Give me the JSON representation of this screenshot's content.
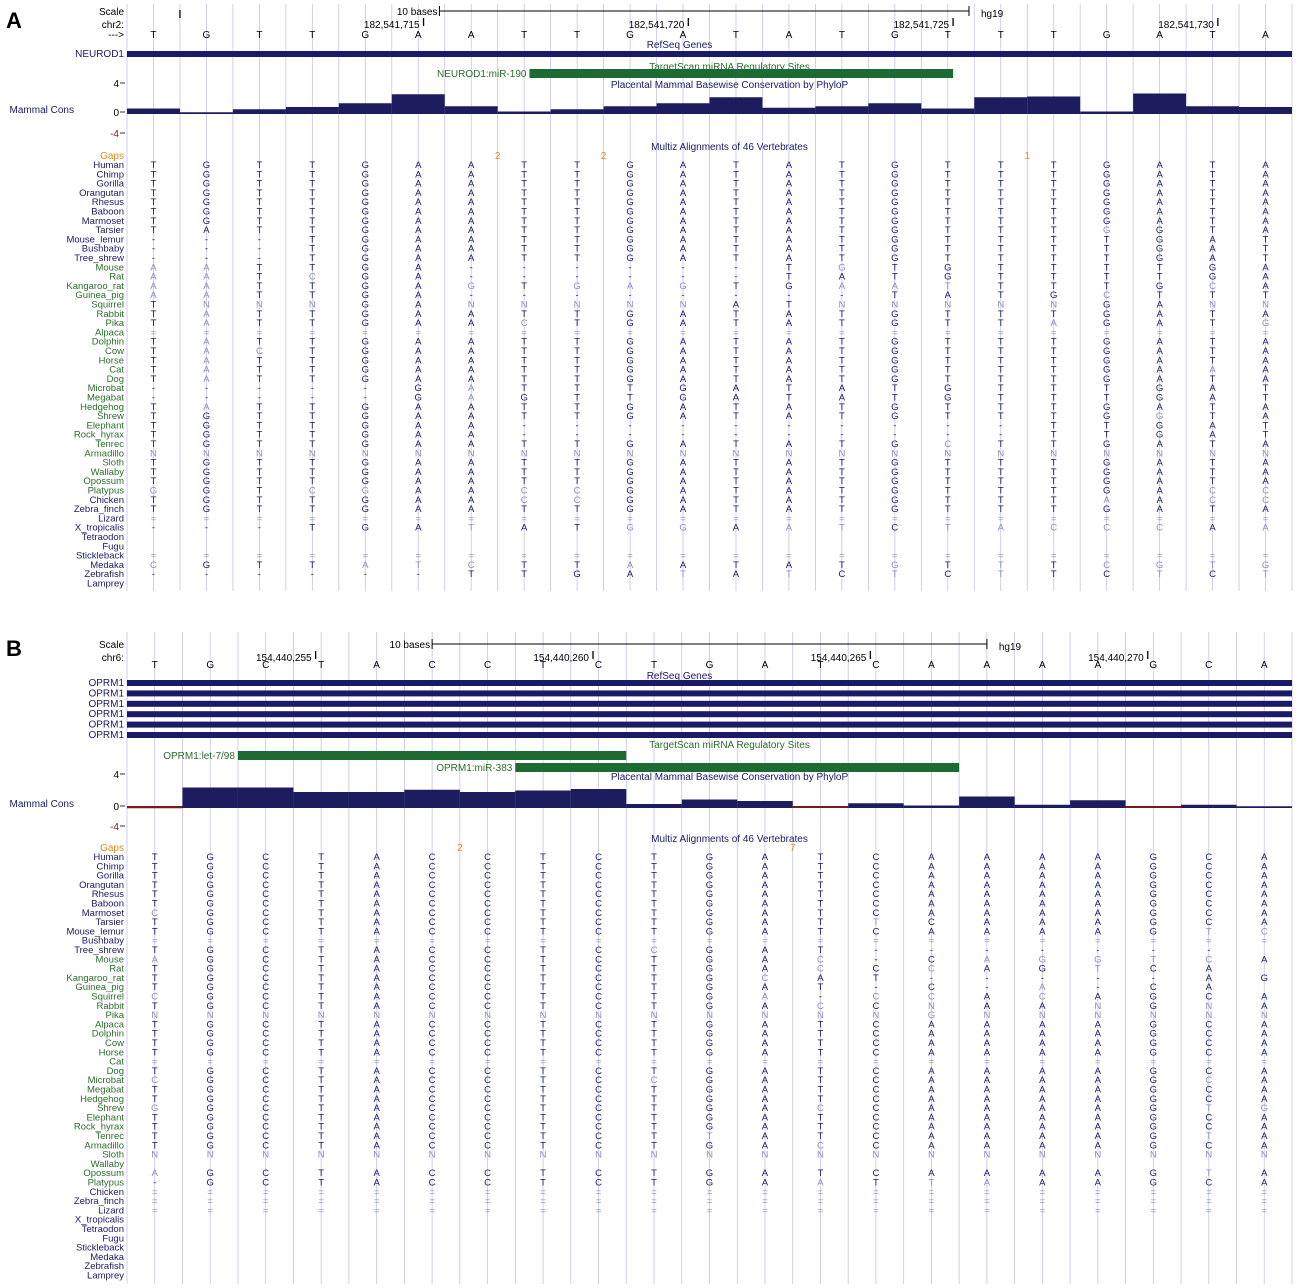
{
  "colors": {
    "navy": "#1a1a66",
    "navy_bar": "#1c1c5e",
    "green_text": "#2a6e2a",
    "green_bar": "#1d6b33",
    "gaps": "#e08a1a",
    "grid": "#c4c4e6",
    "faint": "#8c8cc6",
    "neg_bar": "#7a1a1a",
    "black": "#000000"
  },
  "panels": [
    {
      "id": "A",
      "label": "A",
      "scale_label": "Scale",
      "chrom_label": "chr2:",
      "strand_label": "--->",
      "scale_text": "10 bases",
      "assembly": "hg19",
      "positions": [
        "182,541,715",
        "182,541,720",
        "182,541,725",
        "182,541,730"
      ],
      "ref_seq": "TGTTGAATTGATATGTTTGATA",
      "refseq_title": "RefSeq Genes",
      "genes": [
        "NEUROD1"
      ],
      "targetscan_title": "TargetScan miRNA Regulatory Sites",
      "mirna_sites": [
        {
          "label": "NEUROD1:miR-190",
          "from": 7.6,
          "to": 15.6
        }
      ],
      "phylop_title": "Placental Mammal Basewise Conservation by PhyloP",
      "cons_label": "Mammal Cons",
      "axis_ticks": [
        "4",
        "0",
        "-4"
      ],
      "cons_values": [
        0.6,
        0.1,
        0.5,
        0.8,
        1.3,
        2.5,
        0.9,
        0.2,
        0.5,
        0.9,
        1.3,
        2.1,
        0.7,
        0.9,
        1.3,
        0.6,
        2.1,
        2.2,
        0.2,
        2.6,
        0.9,
        0.8
      ],
      "multiz_title": "Multiz Alignments of 46 Vertebrates",
      "gaps_label": "Gaps",
      "gaps": [
        {
          "label": "2",
          "after": 6
        },
        {
          "label": "2",
          "after": 8
        },
        {
          "label": "1",
          "after": 16
        }
      ],
      "species": [
        {
          "name": "Human",
          "group": "primate",
          "seq": "TGTTGAATTGATATGTTTGATA",
          "faint": ""
        },
        {
          "name": "Chimp",
          "group": "primate",
          "seq": "TGTTGAATTGATATGTTTGATA",
          "faint": ""
        },
        {
          "name": "Gorilla",
          "group": "primate",
          "seq": "TGTTGAATTGATATGTTTGATA",
          "faint": ""
        },
        {
          "name": "Orangutan",
          "group": "primate",
          "seq": "TGTTGAATTGATATGTTTGATA",
          "faint": ""
        },
        {
          "name": "Rhesus",
          "group": "primate",
          "seq": "TGTTGAATTGATATGTTTGATA",
          "faint": ""
        },
        {
          "name": "Baboon",
          "group": "primate",
          "seq": "TGTTGAATTGATATGTTTGATA",
          "faint": ""
        },
        {
          "name": "Marmoset",
          "group": "primate",
          "seq": "TGTTGAATTGATATGTTTGATA",
          "faint": ""
        },
        {
          "name": "Tarsier",
          "group": "primate",
          "seq": "TATTGAATTGATATGTTTGGTA",
          "faint": "..................*..."
        },
        {
          "name": "Mouse_lemur",
          "group": "primate",
          "seq": "---TGAATTGATATGTTTTGATA",
          "faint": ""
        },
        {
          "name": "Bushbaby",
          "group": "primate",
          "seq": "---TGAATTGATATGTTTTGATA",
          "faint": ""
        },
        {
          "name": "Tree_shrew",
          "group": "primate",
          "seq": "---TGAATTGATATGTTTTGATA",
          "faint": ""
        },
        {
          "name": "Mouse",
          "group": "mammal",
          "seq": "AATTGA------TGTGTTTTGATA",
          "faint": "**...........*........"
        },
        {
          "name": "Rat",
          "group": "mammal",
          "seq": "AATCGA------TATGTTTTGATA",
          "faint": "**.*.................."
        },
        {
          "name": "Kangaroo_rat",
          "group": "mammal",
          "seq": "AATTGAGTGAGTGAATTTTGCA",
          "faint": "**....*.***..***....*."
        },
        {
          "name": "Guinea_pig",
          "group": "mammal",
          "seq": "AATTGA--------TATGCTTTGATA",
          "faint": "**................*...."
        },
        {
          "name": "Squirrel",
          "group": "mammal",
          "seq": "TNNNGANNNNNATNNNNNGANN",
          "faint": ".***..*****..*****..**"
        },
        {
          "name": "Rabbit",
          "group": "mammal",
          "seq": "TATTGAATTGATATGTTTGATA",
          "faint": ".*...................."
        },
        {
          "name": "Pika",
          "group": "mammal",
          "seq": "TATTGAACTGATATGTTAGATG",
          "faint": ".*.....*.........*...*"
        },
        {
          "name": "Alpaca",
          "group": "mammal",
          "seq": "======================",
          "faint": "**********************"
        },
        {
          "name": "Dolphin",
          "group": "mammal",
          "seq": "TATTGAATTGATATGTTTGATA",
          "faint": ".*...................."
        },
        {
          "name": "Cow",
          "group": "mammal",
          "seq": "TACTGAATTGATATGTTTGATA",
          "faint": ".**..................."
        },
        {
          "name": "Horse",
          "group": "mammal",
          "seq": "TATTGAATTGATATGTTTGATA",
          "faint": ".*...................."
        },
        {
          "name": "Cat",
          "group": "mammal",
          "seq": "TATTGAATTGATATGTTTGAAA",
          "faint": ".*..................*."
        },
        {
          "name": "Dog",
          "group": "mammal",
          "seq": "TATTGAATTGATATGTTTGATA",
          "faint": ".*...................."
        },
        {
          "name": "Microbat",
          "group": "mammal",
          "seq": "-----GATTTGATATGTTTGATA",
          "faint": "......*..............."
        },
        {
          "name": "Megabat",
          "group": "mammal",
          "seq": "-----GAGTTGATATGTTTGATA",
          "faint": "......*..............."
        },
        {
          "name": "Hedgehog",
          "group": "mammal",
          "seq": "TATTGAATTGATATGTTTGATA",
          "faint": ".*...................."
        },
        {
          "name": "Shrew",
          "group": "mammal",
          "seq": "TGTTGAATTGATATGTTTGGTA",
          "faint": "...................*.."
        },
        {
          "name": "Elephant",
          "group": "mammal",
          "seq": "TGTTGAA----------TTGATA",
          "faint": ""
        },
        {
          "name": "Rock_hyrax",
          "group": "mammal",
          "seq": "TGTTGAA----------TTGATA",
          "faint": ""
        },
        {
          "name": "Tenrec",
          "group": "mammal",
          "seq": "TGTTGAATTGATATGCTTGATA",
          "faint": "...............*......"
        },
        {
          "name": "Armadillo",
          "group": "mammal",
          "seq": "NNNNNNNNNNNNNNNNNNNNNN",
          "faint": "**********************"
        },
        {
          "name": "Sloth",
          "group": "mammal",
          "seq": "TGTTGAATTGATATGTTTGATA",
          "faint": ""
        },
        {
          "name": "Wallaby",
          "group": "mammal",
          "seq": "TGTTGAATTGATATGTTTGATA",
          "faint": ""
        },
        {
          "name": "Opossum",
          "group": "mammal",
          "seq": "TGTTGAATTGATATGTTTGATA",
          "faint": ""
        },
        {
          "name": "Platypus",
          "group": "mammal",
          "seq": "GGTCGAACCGATATGTTTGACC",
          "faint": "*..**..**...........**"
        },
        {
          "name": "Chicken",
          "group": "vertebrate",
          "seq": "TGTTGAACCGATATGTTTAACC",
          "faint": ".......**.........*.**"
        },
        {
          "name": "Zebra_finch",
          "group": "vertebrate",
          "seq": "TGTTGAATTGATATGTTTGATA",
          "faint": ""
        },
        {
          "name": "Lizard",
          "group": "vertebrate",
          "seq": "======================",
          "faint": "**********************"
        },
        {
          "name": "X_tropicalis",
          "group": "vertebrate",
          "seq": "---TGATATGGAATCTACCCAA",
          "faint": "......*..**.**.*****.*"
        },
        {
          "name": "Tetraodon",
          "group": "vertebrate",
          "seq": "                      ",
          "faint": ""
        },
        {
          "name": "Fugu",
          "group": "vertebrate",
          "seq": "                      ",
          "faint": ""
        },
        {
          "name": "Stickleback",
          "group": "vertebrate",
          "seq": "======================",
          "faint": "**********************"
        },
        {
          "name": "Medaka",
          "group": "vertebrate",
          "seq": "CGTTATCTTAATATGTTTCGTG",
          "faint": "*...***..*....*.*.****"
        },
        {
          "name": "Zebrafish",
          "group": "vertebrate",
          "seq": "------TTGATATCTCTTCTCT",
          "faint": "..........*.*.*.*..*.*"
        },
        {
          "name": "Lamprey",
          "group": "vertebrate",
          "seq": "                      ",
          "faint": ""
        }
      ]
    },
    {
      "id": "B",
      "label": "B",
      "scale_label": "Scale",
      "chrom_label": "chr6:",
      "strand_label": "",
      "scale_text": "10 bases",
      "assembly": "hg19",
      "positions": [
        "154,440,255",
        "154,440,260",
        "154,440,265",
        "154,440,270"
      ],
      "ref_seq": "TGCTACCTCTGATCAAAAGCA",
      "refseq_title": "RefSeq Genes",
      "genes": [
        "OPRM1",
        "OPRM1",
        "OPRM1",
        "OPRM1",
        "OPRM1",
        "OPRM1"
      ],
      "targetscan_title": "TargetScan miRNA Regulatory Sites",
      "mirna_sites": [
        {
          "label": "OPRM1:let-7/98",
          "from": 2.0,
          "to": 9.0
        },
        {
          "label": "OPRM1:miR-383",
          "from": 7.0,
          "to": 15.0
        }
      ],
      "phylop_title": "Placental Mammal Basewise Conservation by PhyloP",
      "cons_label": "Mammal Cons",
      "axis_ticks": [
        "4",
        "0",
        "-4"
      ],
      "cons_values": [
        -0.3,
        2.6,
        2.6,
        2.0,
        2.0,
        2.3,
        2.0,
        2.2,
        2.4,
        0.4,
        1.0,
        0.8,
        -0.2,
        0.5,
        0.2,
        1.4,
        0.3,
        0.9,
        -0.2,
        0.3,
        0.1
      ],
      "multiz_title": "Multiz Alignments of 46 Vertebrates",
      "gaps_label": "Gaps",
      "gaps": [
        {
          "label": "2",
          "after": 5
        },
        {
          "label": "7",
          "after": 11
        }
      ],
      "species": [
        {
          "name": "Human",
          "group": "primate",
          "seq": "TGCTACCTCTGATCAAAAGCA",
          "faint": ""
        },
        {
          "name": "Chimp",
          "group": "primate",
          "seq": "TGCTACCTCTGATCAAAAGCA",
          "faint": ""
        },
        {
          "name": "Gorilla",
          "group": "primate",
          "seq": "TGCTACCTCTGATCAAAAGCA",
          "faint": ""
        },
        {
          "name": "Orangutan",
          "group": "primate",
          "seq": "TGCTACCTCTGATCAAAAGCA",
          "faint": ""
        },
        {
          "name": "Rhesus",
          "group": "primate",
          "seq": "TGCTACCTCTGATCAAAAGCA",
          "faint": ""
        },
        {
          "name": "Baboon",
          "group": "primate",
          "seq": "TGCTACCTCTGATCAAAAGCA",
          "faint": ""
        },
        {
          "name": "Marmoset",
          "group": "primate",
          "seq": "CGCTACCTCTGATCAAAAGCA",
          "faint": "*...................."
        },
        {
          "name": "Tarsier",
          "group": "primate",
          "seq": "TGCTACCTCTGATTCAAAGCA",
          "faint": ".............*......."
        },
        {
          "name": "Mouse_lemur",
          "group": "primate",
          "seq": "TGCTACCTCTGATCAAAAGTC",
          "faint": "...................**"
        },
        {
          "name": "Bushbaby",
          "group": "primate",
          "seq": "=====================",
          "faint": "*********************"
        },
        {
          "name": "Tree_shrew",
          "group": "primate",
          "seq": "TGCTACCTCCGAT-------",
          "faint": ".........*.........."
        },
        {
          "name": "Mouse",
          "group": "mammal",
          "seq": "AGCTACCTCTGAC-CAGGTCA",
          "faint": "*...........*..*****."
        },
        {
          "name": "Rat",
          "group": "mammal",
          "seq": "TGCTACCTCTGACCCAGTCA",
          "faint": "............*.*..*.."
        },
        {
          "name": "Kangaroo_rat",
          "group": "mammal",
          "seq": "TGCTACCTCTGCAT-----AGCA",
          "faint": "...........*........."
        },
        {
          "name": "Guinea_pig",
          "group": "mammal",
          "seq": "TGCTACCTCTGAT-C-A-CA",
          "faint": "................*..."
        },
        {
          "name": "Squirrel",
          "group": "mammal",
          "seq": "CGCTACCTCTGA-CCACAGCA",
          "faint": "*..........*.**.*...."
        },
        {
          "name": "Rabbit",
          "group": "mammal",
          "seq": "TGCTACCTCTGACCNAANGNA",
          "faint": "............*.*..*.*."
        },
        {
          "name": "Pika",
          "group": "mammal",
          "seq": "NNNNNNNNNNNNNNGNNNNNN",
          "faint": "*********************"
        },
        {
          "name": "Alpaca",
          "group": "mammal",
          "seq": "TGCTACCTCTGATCAAAAGCA",
          "faint": ""
        },
        {
          "name": "Dolphin",
          "group": "mammal",
          "seq": "TGCTACCTCTGATCAAAAGCA",
          "faint": ""
        },
        {
          "name": "Cow",
          "group": "mammal",
          "seq": "TGCTACCTCTGATCAAAAGCA",
          "faint": ""
        },
        {
          "name": "Horse",
          "group": "mammal",
          "seq": "TGCTACCTCTGATCAAAAGCA",
          "faint": ""
        },
        {
          "name": "Cat",
          "group": "mammal",
          "seq": "=====================",
          "faint": "*********************"
        },
        {
          "name": "Dog",
          "group": "mammal",
          "seq": "TGCTACCTCTGATCAAAAGCA",
          "faint": ""
        },
        {
          "name": "Microbat",
          "group": "mammal",
          "seq": "CGCTACCTCCGATCAAAAGCA",
          "faint": "*........*.........*."
        },
        {
          "name": "Megabat",
          "group": "mammal",
          "seq": "TGCTACCTCTGATCAAAAGCA",
          "faint": ""
        },
        {
          "name": "Hedgehog",
          "group": "mammal",
          "seq": "TGCTACCTCTGATCAAAAGCA",
          "faint": ""
        },
        {
          "name": "Shrew",
          "group": "mammal",
          "seq": "GGCTACCTCTGACCAAAAGTG",
          "faint": "*...........*......**"
        },
        {
          "name": "Elephant",
          "group": "mammal",
          "seq": "TGCTACCTCTGATCAAAAGCA",
          "faint": ""
        },
        {
          "name": "Rock_hyrax",
          "group": "mammal",
          "seq": "TGCTACCTCTGATCAAAAGCA",
          "faint": ""
        },
        {
          "name": "Tenrec",
          "group": "mammal",
          "seq": "TGCTACCTCTTATCAAAAGTA",
          "faint": "..........*........*."
        },
        {
          "name": "Armadillo",
          "group": "mammal",
          "seq": "TGCTACCTCTGACCAAAAGCA",
          "faint": "............*........"
        },
        {
          "name": "Sloth",
          "group": "mammal",
          "seq": "NNNNNNNNNNNNNNNNNNNNN",
          "faint": "*********************"
        },
        {
          "name": "Wallaby",
          "group": "mammal",
          "seq": "                     ",
          "faint": ""
        },
        {
          "name": "Opossum",
          "group": "mammal",
          "seq": "AGCTACCTCTGATCAAAAGTA",
          "faint": "*..................*."
        },
        {
          "name": "Platypus",
          "group": "mammal",
          "seq": "-GCTACCTCTGAATTAAAGCA",
          "faint": "............*.**....."
        },
        {
          "name": "Chicken",
          "group": "vertebrate",
          "seq": "=====================",
          "faint": "*********************"
        },
        {
          "name": "Zebra_finch",
          "group": "vertebrate",
          "seq": "=====================",
          "faint": "*********************"
        },
        {
          "name": "Lizard",
          "group": "vertebrate",
          "seq": "=====================",
          "faint": "*********************"
        },
        {
          "name": "X_tropicalis",
          "group": "vertebrate",
          "seq": "                     ",
          "faint": ""
        },
        {
          "name": "Tetraodon",
          "group": "vertebrate",
          "seq": "                     ",
          "faint": ""
        },
        {
          "name": "Fugu",
          "group": "vertebrate",
          "seq": "                     ",
          "faint": ""
        },
        {
          "name": "Stickleback",
          "group": "vertebrate",
          "seq": "                     ",
          "faint": ""
        },
        {
          "name": "Medaka",
          "group": "vertebrate",
          "seq": "                     ",
          "faint": ""
        },
        {
          "name": "Zebrafish",
          "group": "vertebrate",
          "seq": "                     ",
          "faint": ""
        },
        {
          "name": "Lamprey",
          "group": "vertebrate",
          "seq": "                     ",
          "faint": ""
        }
      ]
    }
  ]
}
